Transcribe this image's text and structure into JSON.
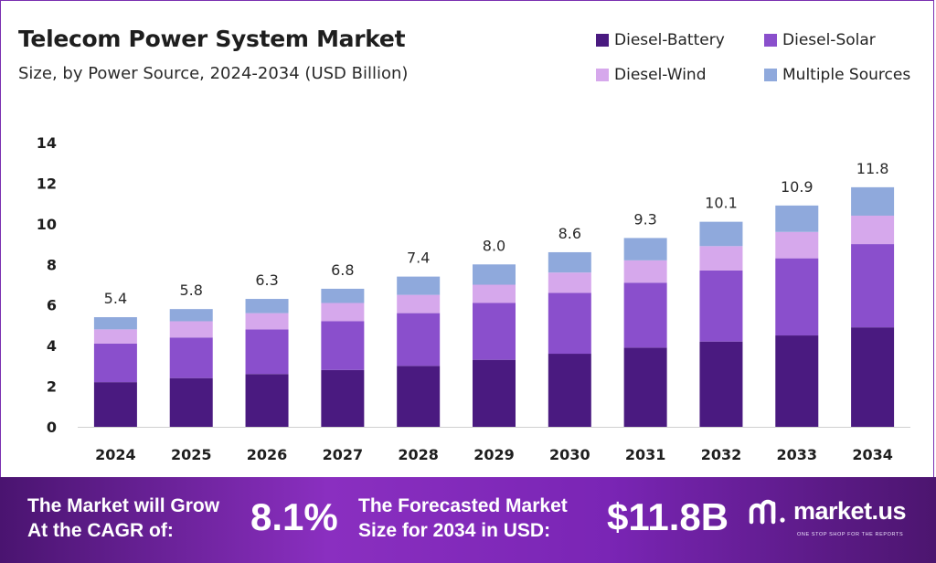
{
  "header": {
    "title": "Telecom Power System Market",
    "subtitle": "Size, by Power Source, 2024-2034 (USD Billion)"
  },
  "legend": [
    {
      "label": "Diesel-Battery",
      "color": "#4a1a80"
    },
    {
      "label": "Diesel-Solar",
      "color": "#8a4fcc"
    },
    {
      "label": "Diesel-Wind",
      "color": "#d6a8ec"
    },
    {
      "label": "Multiple Sources",
      "color": "#8fa9dc"
    }
  ],
  "chart_data": {
    "type": "bar",
    "stacked": true,
    "categories": [
      "2024",
      "2025",
      "2026",
      "2027",
      "2028",
      "2029",
      "2030",
      "2031",
      "2032",
      "2033",
      "2034"
    ],
    "series": [
      {
        "name": "Diesel-Battery",
        "color": "#4a1a80",
        "values": [
          2.2,
          2.4,
          2.6,
          2.8,
          3.0,
          3.3,
          3.6,
          3.9,
          4.2,
          4.5,
          4.9
        ]
      },
      {
        "name": "Diesel-Solar",
        "color": "#8a4fcc",
        "values": [
          1.9,
          2.0,
          2.2,
          2.4,
          2.6,
          2.8,
          3.0,
          3.2,
          3.5,
          3.8,
          4.1
        ]
      },
      {
        "name": "Diesel-Wind",
        "color": "#d6a8ec",
        "values": [
          0.7,
          0.8,
          0.8,
          0.9,
          0.9,
          0.9,
          1.0,
          1.1,
          1.2,
          1.3,
          1.4
        ]
      },
      {
        "name": "Multiple Sources",
        "color": "#8fa9dc",
        "values": [
          0.6,
          0.6,
          0.7,
          0.7,
          0.9,
          1.0,
          1.0,
          1.1,
          1.2,
          1.3,
          1.4
        ]
      }
    ],
    "totals": [
      "5.4",
      "5.8",
      "6.3",
      "6.8",
      "7.4",
      "8.0",
      "8.6",
      "9.3",
      "10.1",
      "10.9",
      "11.8"
    ],
    "y_ticks": [
      "0",
      "2",
      "4",
      "6",
      "8",
      "10",
      "12",
      "14"
    ],
    "ylim": [
      0,
      14
    ],
    "grid": false,
    "legend_position": "top-right"
  },
  "footer": {
    "cagr_label_line1": "The Market will Grow",
    "cagr_label_line2": "At the CAGR of:",
    "cagr_value": "8.1%",
    "forecast_label_line1": "The Forecasted Market",
    "forecast_label_line2": "Size for 2034 in USD:",
    "forecast_value": "$11.8B",
    "brand_name": "market.us",
    "brand_tagline": "ONE STOP SHOP FOR THE REPORTS"
  }
}
